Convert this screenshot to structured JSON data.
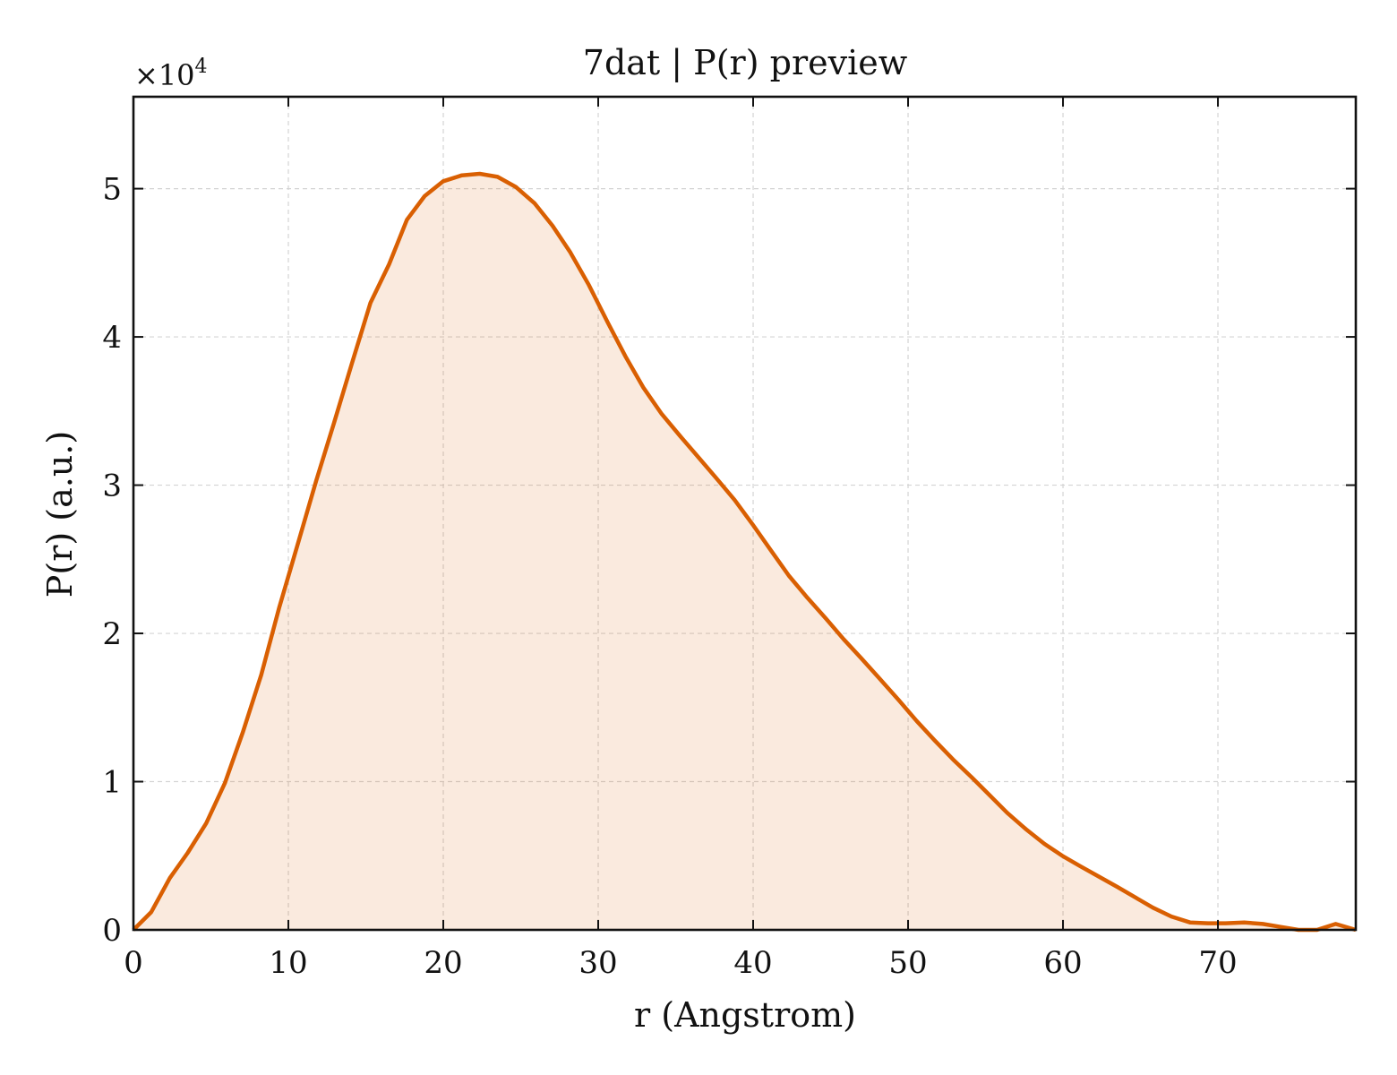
{
  "chart_data": {
    "type": "area",
    "title": "7dat | P(r) preview",
    "xlabel": "r (Angstrom)",
    "ylabel": "P(r) (a.u.)",
    "y_multiplier": "×10",
    "y_multiplier_exponent": "4",
    "xlim": [
      0,
      78.9
    ],
    "ylim": [
      0,
      56200
    ],
    "x_ticks": [
      0,
      10,
      20,
      30,
      40,
      50,
      60,
      70
    ],
    "y_ticks": [
      0,
      10000,
      20000,
      30000,
      40000,
      50000
    ],
    "y_tick_labels": [
      "0",
      "1",
      "2",
      "3",
      "4",
      "5"
    ],
    "grid": true,
    "legend": "none",
    "series": [
      {
        "color": "#d95f02",
        "fill_color": "#d95f02",
        "fill_opacity": 0.13,
        "x": [
          0,
          1.15,
          2.35,
          3.5,
          4.7,
          5.9,
          7.05,
          8.25,
          9.4,
          10.6,
          11.8,
          12.95,
          14.1,
          15.3,
          16.5,
          17.65,
          18.8,
          20.0,
          21.2,
          22.35,
          23.5,
          24.7,
          25.9,
          27.05,
          28.2,
          29.4,
          30.6,
          31.75,
          32.9,
          34.1,
          35.3,
          36.45,
          37.6,
          38.8,
          40.0,
          41.15,
          42.3,
          43.5,
          44.7,
          45.85,
          47.0,
          48.2,
          49.4,
          50.55,
          51.7,
          52.9,
          54.1,
          55.25,
          56.4,
          57.6,
          58.8,
          59.95,
          61.1,
          62.3,
          63.5,
          64.65,
          65.8,
          67.0,
          68.2,
          69.35,
          70.5,
          71.7,
          72.9,
          74.05,
          75.2,
          76.4,
          77.6,
          78.9
        ],
        "y": [
          0,
          1200,
          3500,
          5200,
          7200,
          9900,
          13300,
          17200,
          21700,
          26000,
          30300,
          34200,
          38200,
          42300,
          44900,
          47900,
          49500,
          50500,
          50900,
          51000,
          50800,
          50100,
          49000,
          47500,
          45700,
          43500,
          41000,
          38700,
          36600,
          34800,
          33300,
          31900,
          30500,
          29000,
          27300,
          25600,
          23900,
          22400,
          21000,
          19600,
          18300,
          16900,
          15500,
          14100,
          12800,
          11500,
          10300,
          9100,
          7900,
          6800,
          5800,
          5000,
          4300,
          3600,
          2900,
          2200,
          1500,
          900,
          500,
          450,
          450,
          500,
          400,
          200,
          0,
          0,
          400,
          0
        ]
      }
    ]
  }
}
